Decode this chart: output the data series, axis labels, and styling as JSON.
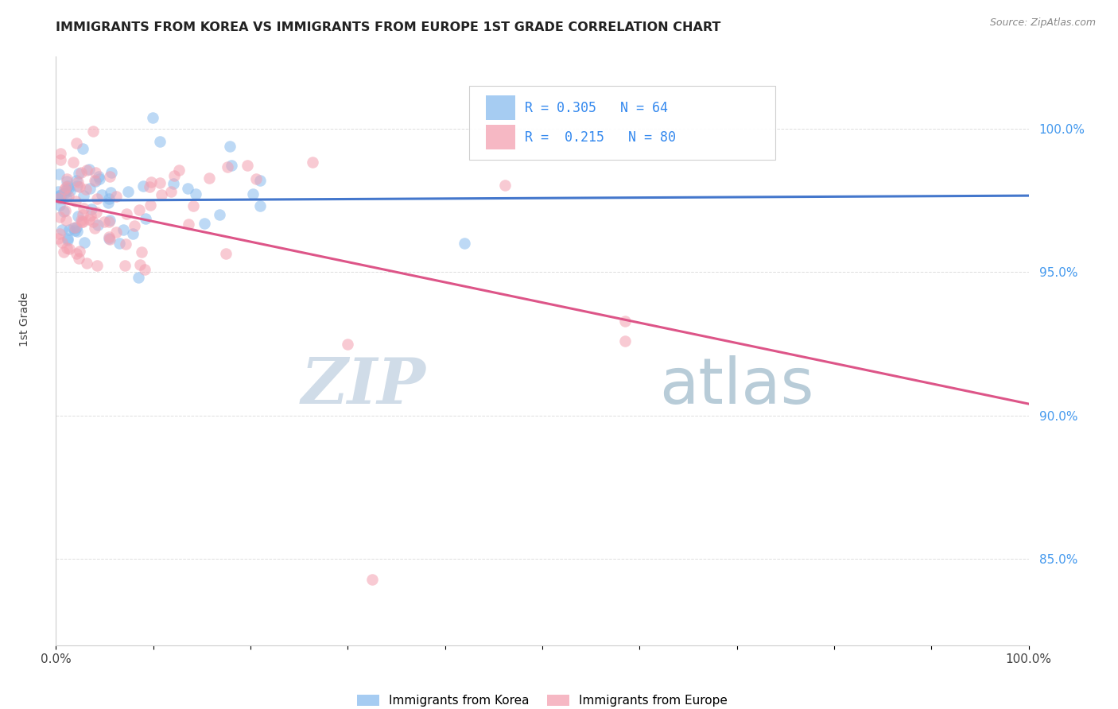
{
  "title": "IMMIGRANTS FROM KOREA VS IMMIGRANTS FROM EUROPE 1ST GRADE CORRELATION CHART",
  "source": "Source: ZipAtlas.com",
  "ylabel": "1st Grade",
  "legend_korea": "Immigrants from Korea",
  "legend_europe": "Immigrants from Europe",
  "R_korea": 0.305,
  "N_korea": 64,
  "R_europe": 0.215,
  "N_europe": 80,
  "color_korea": "#88bbee",
  "color_europe": "#f4a0b0",
  "trendline_color_korea": "#4477cc",
  "trendline_color_europe": "#dd5588",
  "background_color": "#ffffff",
  "xlim": [
    0.0,
    1.0
  ],
  "ylim": [
    0.82,
    1.025
  ],
  "ytick_values": [
    1.0,
    0.95,
    0.9,
    0.85
  ],
  "ytick_labels": [
    "100.0%",
    "95.0%",
    "90.0%",
    "85.0%"
  ],
  "grid_color": "#dddddd",
  "watermark_zip_color": "#d0dce8",
  "watermark_atlas_color": "#b8ccd8"
}
